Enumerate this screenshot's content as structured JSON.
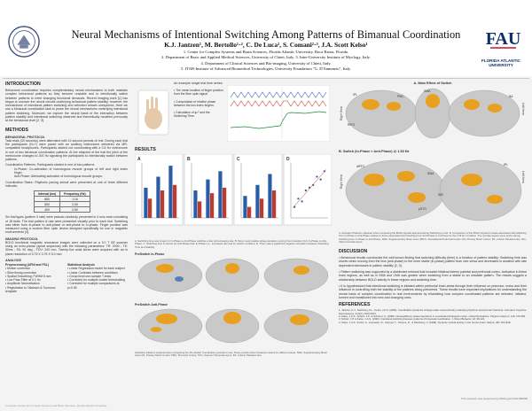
{
  "header": {
    "title": "Neural Mechanisms of Intentional Switching Among Patterns of Bimanual Coordination",
    "authors": "K.J. Jantzen¹, M. Bertollo¹·², C. De Luca², S. Comani²·³, J.A. Scott Kelso¹",
    "affiliations": [
      "1. Center for Complex Systems and Brain Sciences, Florida Atlantic University, Boca Raton, Florida.",
      "2. Department of Basic and Applied Medical Sciences, University of Chieti, Italy.   3. Inter-University Institute of Myology, Italy.",
      "4. Department of Clinical Sciences and Bio-imaging, University of Chieti, Italy.",
      "5. ITAB-Institute of Advanced Biomedical Technologies, University Foundation \"G. D'Annunzio\", Italy."
    ],
    "logo_right_name": "FAU",
    "logo_right_text": "FLORIDA ATLANTIC UNIVERSITY"
  },
  "intro": {
    "title": "INTRODUCTION",
    "text": "Behavioral coordination requires complementary neural mechanisms to both maintain complex behavioral patterns so they become unstable and to intentionally switch between patterns to meet changing functional demands. Recent imaging work [1] has begun to uncover the neural circuits underlying behavioral pattern stability; however, the mechanisms of intentional pattern switching and selection remain unexplored. Here we use a bimanual coordination task to probe the neural mechanisms underlying intentional pattern switching. Moreover, we explore the neural basis of the interaction between pattern stability and intentional switching observed and theoretically modeled previously at the behavioral level [2, 3]."
  },
  "methods": {
    "title": "METHODS",
    "protocol_title": "BEHAVIORAL PROTOCOL",
    "protocol_text": "Task trials (30 seconds) were alternated with 14 second periods of rest. During each trial the participants (N=7) were paced with an auditory metronome delivered via MR-compatible headphones. Participants started out coordinating with a 0.6 Hz metronome in one of two bimanual coordination patterns. At the midpoint of the trial the pitch of the metronome changed to 200 Hz signaling the participants to intentionally switch between patterns.",
    "conditions_label": "Coordination Patterns: Participants started in one of two patterns",
    "in_phase": "In-Phase: Co-activation of homologous muscle groups of left and right index finger.",
    "anti_phase": "Anti-Phase: Alternating activation of homologous muscle groups.",
    "rate_label": "Coordination Rates: Rhythmic pacing stimuli were presented at one of three different intervals:",
    "table_headers": [
      "Interval (ms)",
      "Frequency (Hz)"
    ],
    "table_rows": [
      [
        "860",
        "1.16"
      ],
      [
        "500",
        "2.00"
      ],
      [
        "400",
        "2.50"
      ]
    ],
    "after_table": "Six trial types (pattern X rate) were pseudo-randomly presented in 4 runs each consisting of 18 trials. The trial pattern & rate were presented visually prior to each trial. Switching was either from in-phase to anti-phase or anti-phase to in-phase. Finger position was measured using a custom fiber optic device designed specifically for use in magnetic environments [4].",
    "imaging_title": "IMAGING PROTOCOL",
    "imaging_text": "BOLD functional magnetic resonance images were collected on a 3.0 T GE scanner using an echo-planar (spiral sequence) with the following parameters: TR: 2000 ; TE: 30ms ; FA: 90 deg ; FOV: 240 mm. Twenty-five axial slices were acquired with an in plane resolution of 3.75 X 3.75 X 5.0 mm.",
    "analysis_title": "ANALYSIS",
    "afni_title": "Preprocessing (AFNI and FSL)",
    "afni_items": [
      "Motion correction",
      "Slice timing correction",
      "Spatial Smoothing: FWHM 8 mm",
      "Low Pass Filter at 0.1 Hz",
      "Amplitude Normalization",
      "Registration to Talairach & Tournoux template"
    ],
    "stats_title": "Statistical Analysis",
    "stats_items": [
      "Linear Regression model for each subject",
      "Linear Contrasts between conditions",
      "Group level one-sample T-tests",
      "Corrected for multiple cluster thresholding",
      "Corrected for multiple comparisons at p<0.05"
    ]
  },
  "main": {
    "example_title": "An example single trial time series:",
    "example_points": [
      "The mean location of finger position from the fiber optic signal.",
      "Computation of relative phase between the two index fingers.",
      "Calculation of φᵣᵉˡ and the Switching Time."
    ],
    "results_title": "RESULTS",
    "results_caption": "A. Switching time was longer for In-Phase to Anti-Phase switches under all increasing rate.  B. More mean relative phase deviation coming from transition from In-Phase to Anti-Phase.  C. Switching time is shorter for Anti-Phase than In-Phase (i.e., increased rate and for switch condition).  D. There was a significant negative correlation between Switching Time and Stability.",
    "preswitch_in": "PreSwitch In-Phase",
    "preswitch_anti": "PreSwitch Anti-Phase",
    "preswitch_caption": "Activation Patterns acquired when comparing the Pre-Switch Coordination periods to rest. These results show increased volume for different areas: SMA, Supplementary Motor Area; M1, Primary Motor Cortex; PMC, Premotor Cortex; STG, Superior Temporal Gyrus; IPL, Inferior Parietal Lobe.",
    "panel_labels": [
      "A",
      "B",
      "C",
      "D"
    ]
  },
  "right": {
    "a_title": "A. Main Effect of Switch",
    "b_title": "B. Switch (In-Phase > Anti-Phase) @ 1.53 Hz",
    "brain_labels": [
      "IPL",
      "SMA",
      "PMC",
      "RIFG",
      "BA",
      "dlPFC",
      "pSTG",
      "SMA",
      "INS",
      "IPL"
    ],
    "side_labels": [
      "Right Hem",
      "Left Hem"
    ],
    "figure_caption": "A. Activation Patterns obtained when comparing the BOLD signals acquired during Switching to rest.  B. Comparison of the BOLD signal for areas associated with switching from In-Phase to Anti-Phase relative to those associated with switching from Anti-Phase to In-Phase for the 1.53 Hz Condition. The overlap regions were active during switching from In-Phase to Anti-Phase. SMA, Supplementary Motor Area; dlPFC, Dorsolateral Prefrontal Cortex; M1, Primary Motor Cortex; IPL, Inferior Parietal Lobe; IFG, Inferior Frontal Gyrus.",
    "discussion_title": "DISCUSSION",
    "discussion": [
      "Behavioral results corroborate the well known finding that switching difficulty (time) is a function of pattern stability: Switching time was shorter when moving from the less (anti-phase) to the more stable (in-phase) pattern than vice-versa and decreased in duration with rate dependent decreases in pattern stability [2, 3].",
      "Pattern switching was supported by a distributed network that included bilateral inferior parietal and prefrontal cortex. Activation in these brain regions, as well as in SMA and CMA was greater when switching from a stable to an unstable pattern. The results suggest a relationship between BOLD activity in these regions and switching time.",
      "It is hypothesized that intentional switching is initiated within prefrontal brain areas through their influence on premotor, motor and their influence in controlling both the stability of the patterns being performed. These results have important implications for understanding the neural basis of complex coordination in real environments by elucidating how complex coordinated patterns are selected, initiated, formed and transitioned into new and changing ones."
    ],
    "references_title": "REFERENCES",
    "references": [
      "1. Jantzen, K.J., Steinberg, F.L., Kelso, J.A.S. (2009). Coordination dynamics of large-scale neural circuitry underlying rhythmic sensorimotor behavior. Journal of Cognitive Neuroscience, 21(12), 2420-2433.",
      "2. Kelso, J.A.S., Scholz, J.P., & Schöner, G. (1986). Nonequilibrium phase transitions in coordinated biological motion: critical fluctuations. Physics Letters A, 118, 279-284.",
      "3. Scholz, J.P. & Kelso, J.A.S. (1990). Intentional switching between patterns of bimanual coordination. J. Motor Behavior, 22, 98-124.",
      "4. Kelso, J.A.S., Fuchs, A., Lancaster, R., Holroyd, T., Cheyne, D., & Weinberg, H. (1998). Dynamic cortical activity in the human brain. Nature, 392, 814-818."
    ],
    "support": "This research was supported by NIMH grant MH-080838"
  },
  "footer": "Computer Center for Complex Systems and Brain Sciences, Florida Atlantic University",
  "colors": {
    "accent": "#c0392b",
    "blue": "#2a5da8",
    "brain": "#c9c9c9",
    "activation": "#e8a020",
    "fau_blue": "#0d2f6b",
    "fau_red": "#c8102e"
  },
  "chart_data": [
    {
      "type": "bar",
      "panel": "A",
      "series": [
        {
          "values": [
            0.55,
            0.75,
            0.95
          ]
        },
        {
          "values": [
            0.35,
            0.5,
            0.6
          ]
        }
      ]
    },
    {
      "type": "bar",
      "panel": "B",
      "series": [
        {
          "values": [
            0.5,
            0.7,
            0.85
          ]
        },
        {
          "values": [
            0.3,
            0.45,
            0.55
          ]
        }
      ]
    },
    {
      "type": "bar",
      "panel": "C",
      "series": [
        {
          "values": [
            0.4,
            0.6,
            0.8
          ]
        },
        {
          "values": [
            0.2,
            0.35,
            0.5
          ]
        }
      ]
    },
    {
      "type": "scatter",
      "panel": "D",
      "points": [
        [
          0.1,
          0.2
        ],
        [
          0.2,
          0.35
        ],
        [
          0.3,
          0.3
        ],
        [
          0.4,
          0.5
        ],
        [
          0.5,
          0.55
        ],
        [
          0.6,
          0.6
        ],
        [
          0.7,
          0.75
        ],
        [
          0.8,
          0.7
        ],
        [
          0.9,
          0.85
        ]
      ]
    }
  ]
}
